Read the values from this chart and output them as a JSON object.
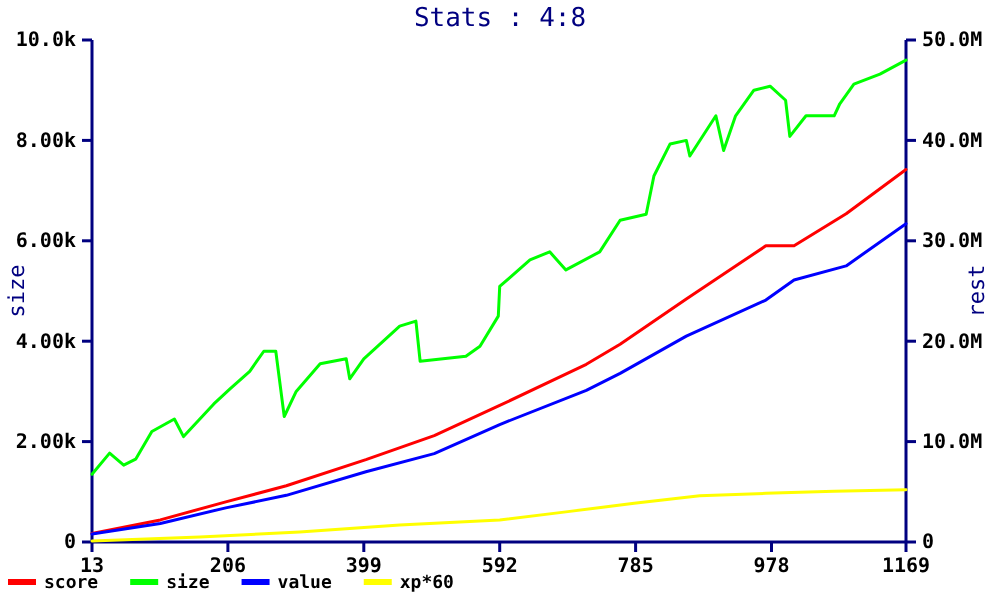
{
  "chart_data": {
    "type": "line",
    "title": "Stats : 4:8",
    "ylabel": "size",
    "y2label": "rest",
    "xlim": [
      13,
      1169
    ],
    "xticks": [
      13,
      206,
      399,
      592,
      785,
      978,
      1169
    ],
    "ylim": [
      0,
      10
    ],
    "yticks": [
      0,
      {
        "value": 2,
        "label": "2.00k"
      },
      {
        "value": 4,
        "label": "4.00k"
      },
      {
        "value": 6,
        "label": "6.00k"
      },
      {
        "value": 8,
        "label": "8.00k"
      },
      {
        "value": 10,
        "label": "10.0k"
      }
    ],
    "y2lim": [
      0,
      50
    ],
    "y2ticks": [
      0,
      {
        "value": 10,
        "label": "10.0M"
      },
      {
        "value": 20,
        "label": "20.0M"
      },
      {
        "value": 30,
        "label": "30.0M"
      },
      {
        "value": 40,
        "label": "40.0M"
      },
      {
        "value": 50,
        "label": "50.0M"
      }
    ],
    "legend": "bottom",
    "grid": false,
    "series": [
      {
        "name": "score",
        "color": "#ff0000",
        "axis": "y2",
        "x": [
          13,
          110,
          203,
          289,
          402,
          499,
          592,
          715,
          763,
          857,
          970,
          1010,
          1084,
          1169
        ],
        "values": [
          0.85,
          2.2,
          4.0,
          5.6,
          8.2,
          10.6,
          13.6,
          17.7,
          19.7,
          24.2,
          29.5,
          29.5,
          32.7,
          37.1
        ]
      },
      {
        "name": "size",
        "color": "#00ff00",
        "axis": "y",
        "x": [
          13,
          38,
          58,
          75,
          98,
          130,
          143,
          186,
          209,
          237,
          257,
          274,
          286,
          303,
          337,
          374,
          379,
          399,
          450,
          473,
          479,
          544,
          564,
          590,
          592,
          635,
          663,
          686,
          734,
          763,
          800,
          811,
          834,
          857,
          862,
          899,
          910,
          927,
          953,
          976,
          998,
          1004,
          1027,
          1067,
          1075,
          1095,
          1132,
          1169
        ],
        "values": [
          1.35,
          1.77,
          1.53,
          1.65,
          2.2,
          2.45,
          2.1,
          2.75,
          3.05,
          3.4,
          3.8,
          3.8,
          2.5,
          3.0,
          3.55,
          3.65,
          3.25,
          3.65,
          4.3,
          4.4,
          3.6,
          3.7,
          3.9,
          4.5,
          5.09,
          5.62,
          5.78,
          5.42,
          5.78,
          6.41,
          6.53,
          7.29,
          7.93,
          8.0,
          7.69,
          8.49,
          7.8,
          8.49,
          9.0,
          9.08,
          8.8,
          8.08,
          8.49,
          8.49,
          8.73,
          9.12,
          9.32,
          9.6
        ]
      },
      {
        "name": "value",
        "color": "#0000ff",
        "axis": "y2",
        "x": [
          13,
          110,
          203,
          289,
          402,
          499,
          592,
          715,
          763,
          857,
          970,
          1010,
          1084,
          1169
        ],
        "values": [
          0.8,
          1.85,
          3.4,
          4.65,
          7.0,
          8.8,
          11.7,
          15.1,
          16.8,
          20.5,
          24.1,
          26.1,
          27.5,
          31.7
        ]
      },
      {
        "name": "xp*60",
        "color": "#ffff00",
        "axis": "y2",
        "x": [
          13,
          166,
          308,
          450,
          592,
          686,
          783,
          876,
          970,
          1067,
          1169
        ],
        "values": [
          0.1,
          0.5,
          1.0,
          1.7,
          2.2,
          3.0,
          3.85,
          4.6,
          4.85,
          5.05,
          5.2
        ]
      }
    ]
  }
}
